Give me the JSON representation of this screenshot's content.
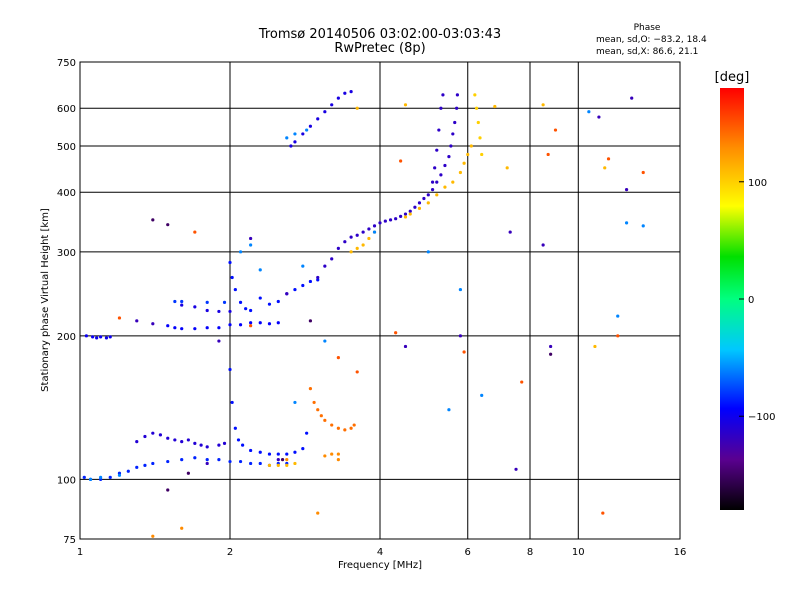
{
  "chart_data": {
    "type": "scatter",
    "title": "Tromsø 20140506 03:02:00-03:03:43",
    "subtitle": "RwPretec (8p)",
    "xlabel": "Frequency [MHz]",
    "ylabel": "Stationary phase Virtual Height [km]",
    "x_scale": "log",
    "y_scale": "log",
    "xlim": [
      1,
      16
    ],
    "ylim": [
      75,
      750
    ],
    "x_ticks": [
      {
        "value": 1,
        "label": "1"
      },
      {
        "value": 2,
        "label": "2"
      },
      {
        "value": 4,
        "label": "4"
      },
      {
        "value": 6,
        "label": "6"
      },
      {
        "value": 8,
        "label": "8"
      },
      {
        "value": 10,
        "label": "10"
      },
      {
        "value": 16,
        "label": "16"
      }
    ],
    "y_ticks": [
      {
        "value": 75,
        "label": "75"
      },
      {
        "value": 100,
        "label": "100"
      },
      {
        "value": 200,
        "label": "200"
      },
      {
        "value": 300,
        "label": "300"
      },
      {
        "value": 400,
        "label": "400"
      },
      {
        "value": 500,
        "label": "500"
      },
      {
        "value": 600,
        "label": "600"
      },
      {
        "value": 750,
        "label": "750"
      }
    ],
    "grid": true,
    "stats": {
      "heading": "Phase",
      "line_o": "mean, sd,O: −83.2, 18.4",
      "line_x": "mean, sd,X:  86.6, 21.1"
    },
    "colorbar": {
      "label": "[deg]",
      "range": [
        -180,
        180
      ],
      "ticks": [
        {
          "value": 100,
          "label": "100"
        },
        {
          "value": 0,
          "label": "0"
        },
        {
          "value": -100,
          "label": "−100"
        }
      ]
    },
    "traces": [
      {
        "phase": -100,
        "points": [
          [
            1.03,
            200
          ],
          [
            1.06,
            199
          ],
          [
            1.08,
            198
          ],
          [
            1.1,
            199
          ],
          [
            1.13,
            198
          ],
          [
            1.15,
            199
          ]
        ]
      },
      {
        "phase": -85,
        "points": [
          [
            1.02,
            101
          ],
          [
            1.05,
            100
          ],
          [
            1.1,
            100
          ],
          [
            1.15,
            101
          ],
          [
            1.2,
            103
          ],
          [
            1.25,
            104
          ],
          [
            1.3,
            106
          ],
          [
            1.35,
            107
          ],
          [
            1.4,
            108
          ],
          [
            1.5,
            109
          ],
          [
            1.6,
            110
          ],
          [
            1.7,
            111
          ],
          [
            1.8,
            110
          ],
          [
            1.9,
            110
          ],
          [
            2.0,
            109
          ],
          [
            2.1,
            109
          ],
          [
            2.2,
            108
          ],
          [
            2.3,
            108
          ],
          [
            2.4,
            107
          ],
          [
            2.5,
            108
          ],
          [
            2.6,
            108
          ]
        ]
      },
      {
        "phase": -110,
        "points": [
          [
            1.3,
            120
          ],
          [
            1.35,
            123
          ],
          [
            1.4,
            125
          ],
          [
            1.45,
            124
          ],
          [
            1.5,
            122
          ],
          [
            1.55,
            121
          ],
          [
            1.6,
            120
          ],
          [
            1.65,
            121
          ],
          [
            1.7,
            119
          ],
          [
            1.75,
            118
          ],
          [
            1.8,
            117
          ],
          [
            1.9,
            118
          ],
          [
            1.95,
            119
          ]
        ]
      },
      {
        "phase": -90,
        "points": [
          [
            2.0,
            170
          ],
          [
            2.02,
            145
          ],
          [
            2.05,
            128
          ],
          [
            2.08,
            121
          ],
          [
            2.12,
            118
          ],
          [
            2.2,
            115
          ],
          [
            2.3,
            114
          ],
          [
            2.4,
            113
          ],
          [
            2.5,
            113
          ],
          [
            2.6,
            113
          ],
          [
            2.7,
            114
          ],
          [
            2.8,
            116
          ],
          [
            2.85,
            125
          ]
        ]
      },
      {
        "phase": 140,
        "points": [
          [
            2.9,
            155
          ],
          [
            2.95,
            145
          ],
          [
            3.0,
            140
          ],
          [
            3.05,
            136
          ],
          [
            3.1,
            133
          ],
          [
            3.2,
            130
          ],
          [
            3.3,
            128
          ],
          [
            3.4,
            127
          ],
          [
            3.5,
            128
          ],
          [
            3.55,
            130
          ]
        ]
      },
      {
        "phase": 130,
        "points": [
          [
            3.1,
            112
          ],
          [
            3.2,
            113
          ],
          [
            3.3,
            113
          ]
        ]
      },
      {
        "phase": 110,
        "points": [
          [
            2.4,
            107
          ],
          [
            2.5,
            107
          ],
          [
            2.6,
            107
          ],
          [
            2.7,
            108
          ]
        ]
      },
      {
        "phase": -95,
        "points": [
          [
            1.5,
            210
          ],
          [
            1.55,
            208
          ],
          [
            1.6,
            207
          ],
          [
            1.7,
            207
          ],
          [
            1.8,
            208
          ],
          [
            1.9,
            208
          ],
          [
            2.0,
            211
          ],
          [
            2.1,
            211
          ],
          [
            2.2,
            213
          ],
          [
            2.3,
            213
          ],
          [
            2.4,
            212
          ],
          [
            2.5,
            213
          ]
        ]
      },
      {
        "phase": -105,
        "points": [
          [
            1.6,
            232
          ],
          [
            1.7,
            230
          ],
          [
            1.8,
            226
          ],
          [
            1.9,
            225
          ],
          [
            2.0,
            225
          ]
        ]
      },
      {
        "phase": -80,
        "points": [
          [
            1.55,
            236
          ],
          [
            1.6,
            236
          ],
          [
            1.8,
            235
          ],
          [
            1.95,
            235
          ]
        ]
      },
      {
        "phase": -90,
        "points": [
          [
            2.0,
            285
          ],
          [
            2.02,
            265
          ],
          [
            2.05,
            250
          ],
          [
            2.1,
            235
          ],
          [
            2.15,
            228
          ],
          [
            2.2,
            226
          ],
          [
            2.3,
            240
          ],
          [
            2.4,
            233
          ],
          [
            2.5,
            236
          ],
          [
            2.6,
            245
          ],
          [
            2.7,
            250
          ],
          [
            2.8,
            255
          ],
          [
            2.9,
            260
          ],
          [
            3.0,
            262
          ]
        ]
      },
      {
        "phase": -115,
        "points": [
          [
            3.0,
            265
          ],
          [
            3.1,
            280
          ],
          [
            3.2,
            290
          ],
          [
            3.3,
            305
          ],
          [
            3.4,
            315
          ],
          [
            3.5,
            322
          ],
          [
            3.6,
            325
          ],
          [
            3.7,
            330
          ],
          [
            3.8,
            335
          ],
          [
            3.9,
            340
          ],
          [
            4.0,
            345
          ],
          [
            4.1,
            348
          ],
          [
            4.2,
            350
          ],
          [
            4.3,
            352
          ],
          [
            4.4,
            356
          ],
          [
            4.5,
            360
          ],
          [
            4.6,
            365
          ],
          [
            4.7,
            372
          ],
          [
            4.8,
            380
          ],
          [
            4.9,
            388
          ],
          [
            5.0,
            395
          ],
          [
            5.1,
            405
          ],
          [
            5.2,
            420
          ],
          [
            5.3,
            435
          ],
          [
            5.4,
            455
          ],
          [
            5.5,
            475
          ],
          [
            5.55,
            500
          ],
          [
            5.6,
            530
          ],
          [
            5.65,
            560
          ],
          [
            5.7,
            600
          ],
          [
            5.72,
            640
          ]
        ]
      },
      {
        "phase": -115,
        "points": [
          [
            5.1,
            420
          ],
          [
            5.15,
            450
          ],
          [
            5.2,
            490
          ],
          [
            5.25,
            540
          ],
          [
            5.3,
            600
          ],
          [
            5.35,
            640
          ]
        ]
      },
      {
        "phase": 110,
        "points": [
          [
            3.5,
            300
          ],
          [
            3.6,
            305
          ],
          [
            3.7,
            310
          ],
          [
            3.8,
            320
          ],
          [
            3.9,
            330
          ],
          [
            4.5,
            355
          ],
          [
            4.6,
            360
          ],
          [
            4.8,
            370
          ],
          [
            5.0,
            380
          ],
          [
            5.2,
            395
          ],
          [
            5.4,
            410
          ],
          [
            5.6,
            420
          ],
          [
            5.8,
            440
          ],
          [
            5.9,
            460
          ],
          [
            6.0,
            480
          ],
          [
            6.1,
            500
          ]
        ]
      },
      {
        "phase": 100,
        "points": [
          [
            6.2,
            640
          ],
          [
            6.25,
            600
          ],
          [
            6.3,
            560
          ],
          [
            6.35,
            520
          ],
          [
            6.4,
            480
          ]
        ]
      },
      {
        "phase": -105,
        "points": [
          [
            2.65,
            500
          ],
          [
            2.7,
            510
          ],
          [
            2.8,
            530
          ],
          [
            2.9,
            550
          ],
          [
            3.0,
            570
          ],
          [
            3.1,
            590
          ],
          [
            3.2,
            610
          ],
          [
            3.3,
            630
          ],
          [
            3.4,
            645
          ],
          [
            3.5,
            650
          ]
        ]
      },
      {
        "phase": -60,
        "points": [
          [
            2.6,
            520
          ],
          [
            2.7,
            530
          ],
          [
            2.85,
            540
          ]
        ]
      },
      {
        "phase": -60,
        "points": [
          [
            1.05,
            100
          ],
          [
            1.1,
            101
          ],
          [
            1.2,
            102
          ],
          [
            2.1,
            300
          ],
          [
            2.2,
            310
          ],
          [
            2.3,
            275
          ],
          [
            2.8,
            280
          ],
          [
            3.9,
            330
          ],
          [
            5.5,
            140
          ],
          [
            6.4,
            150
          ],
          [
            5.0,
            300
          ],
          [
            5.8,
            250
          ],
          [
            12.0,
            220
          ],
          [
            10.5,
            590
          ],
          [
            12.5,
            345
          ],
          [
            13.5,
            340
          ],
          [
            2.7,
            145
          ],
          [
            3.1,
            195
          ]
        ]
      },
      {
        "phase": -120,
        "points": [
          [
            1.3,
            215
          ],
          [
            1.4,
            212
          ],
          [
            1.9,
            195
          ],
          [
            2.2,
            320
          ],
          [
            2.6,
            245
          ],
          [
            4.5,
            190
          ],
          [
            5.8,
            200
          ],
          [
            7.5,
            105
          ],
          [
            8.8,
            190
          ],
          [
            11.0,
            575
          ],
          [
            12.5,
            405
          ],
          [
            12.8,
            630
          ],
          [
            7.3,
            330
          ],
          [
            8.5,
            310
          ],
          [
            2.5,
            110
          ],
          [
            1.8,
            108
          ]
        ]
      },
      {
        "phase": -150,
        "points": [
          [
            1.4,
            350
          ],
          [
            1.5,
            342
          ],
          [
            2.55,
            110
          ],
          [
            1.65,
            103
          ],
          [
            1.5,
            95
          ],
          [
            2.9,
            215
          ],
          [
            8.8,
            183
          ]
        ]
      },
      {
        "phase": 150,
        "points": [
          [
            1.2,
            218
          ],
          [
            1.7,
            330
          ],
          [
            2.2,
            210
          ],
          [
            3.3,
            180
          ],
          [
            3.6,
            168
          ],
          [
            4.3,
            203
          ],
          [
            5.9,
            185
          ],
          [
            7.7,
            160
          ],
          [
            8.7,
            480
          ],
          [
            9.0,
            540
          ],
          [
            11.2,
            85
          ],
          [
            11.5,
            470
          ],
          [
            12.0,
            200
          ],
          [
            13.5,
            440
          ],
          [
            4.4,
            465
          ]
        ]
      },
      {
        "phase": 110,
        "points": [
          [
            3.6,
            600
          ],
          [
            4.5,
            610
          ],
          [
            6.8,
            605
          ],
          [
            8.5,
            610
          ],
          [
            7.2,
            450
          ],
          [
            10.8,
            190
          ],
          [
            11.3,
            450
          ]
        ]
      },
      {
        "phase": 130,
        "points": [
          [
            3.0,
            85
          ],
          [
            2.6,
            110
          ],
          [
            3.3,
            110
          ],
          [
            1.4,
            76
          ],
          [
            1.6,
            79
          ]
        ]
      }
    ]
  }
}
